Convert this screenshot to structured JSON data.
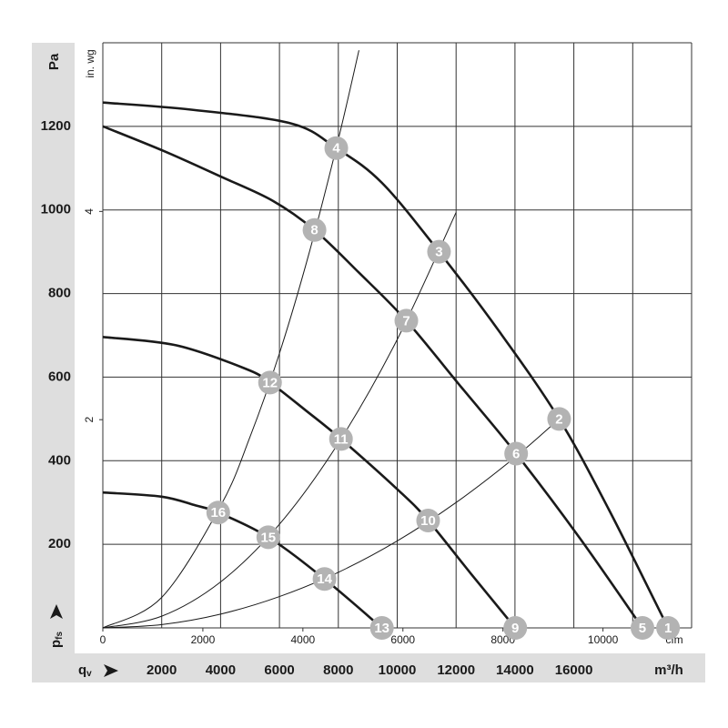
{
  "chart_data": {
    "type": "line",
    "x_label": "m³/h",
    "x2_label": "cfm",
    "y_label": "Pa",
    "y2_label": "in. wg",
    "x_symbol": "q",
    "x_symbol_sub": "v",
    "y_symbol": "p",
    "y_symbol_sub": "fs",
    "xlim": [
      0,
      20000
    ],
    "xticks": [
      2000,
      4000,
      6000,
      8000,
      10000,
      12000,
      14000,
      16000
    ],
    "xgrid": [
      0,
      2000,
      4000,
      6000,
      8000,
      10000,
      12000,
      14000,
      16000,
      18000,
      20000
    ],
    "ylim": [
      0,
      1400
    ],
    "yticks": [
      200,
      400,
      600,
      800,
      1000,
      1200
    ],
    "ygrid": [
      0,
      200,
      400,
      600,
      800,
      1000,
      1200,
      1400
    ],
    "x2lim": [
      0,
      11772
    ],
    "x2ticks": [
      0,
      2000,
      4000,
      6000,
      8000,
      10000
    ],
    "y2lim": [
      0,
      5.62
    ],
    "y2ticks": [
      2,
      4
    ],
    "grid": true,
    "series": [
      {
        "kind": "fan",
        "color": "#1a1a1a",
        "x": [
          0,
          3000,
          6390,
          7930,
          9480,
          11420,
          13490,
          15500,
          17190,
          19200
        ],
        "values": [
          1257,
          1240,
          1207,
          1148,
          1065,
          900,
          707,
          500,
          283,
          0
        ]
      },
      {
        "kind": "fan",
        "color": "#1a1a1a",
        "x": [
          0,
          2070,
          4000,
          5770,
          7190,
          8700,
          10310,
          12200,
          14040,
          16200,
          18330
        ],
        "values": [
          1200,
          1141,
          1080,
          1022,
          952,
          850,
          735,
          574,
          417,
          215,
          0
        ]
      },
      {
        "kind": "fan",
        "color": "#1a1a1a",
        "x": [
          0,
          2500,
          4850,
          5680,
          6900,
          8090,
          10090,
          11050,
          12500,
          14010
        ],
        "values": [
          696,
          676,
          620,
          587,
          520,
          452,
          326,
          257,
          130,
          0
        ]
      },
      {
        "kind": "fan",
        "color": "#1a1a1a",
        "x": [
          0,
          2000,
          3150,
          3920,
          5620,
          7530,
          9480
        ],
        "values": [
          324,
          314,
          293,
          276,
          217,
          117,
          0
        ]
      },
      {
        "kind": "system",
        "color": "#1a1a1a",
        "x": [
          0,
          2000,
          4000,
          5000,
          6000,
          7000,
          8000,
          8700
        ],
        "values": [
          0,
          73,
          292,
          457,
          657,
          895,
          1169,
          1382
        ]
      },
      {
        "kind": "system",
        "color": "#1a1a1a",
        "x": [
          0,
          2000,
          4000,
          6000,
          8000,
          10000,
          12000
        ],
        "values": [
          0,
          28,
          110,
          248,
          442,
          690,
          994
        ]
      },
      {
        "kind": "system",
        "color": "#1a1a1a",
        "x": [
          0,
          2000,
          4000,
          6000,
          8000,
          10000,
          12000,
          14000,
          15500
        ],
        "values": [
          0,
          8,
          33,
          75,
          133,
          208,
          300,
          408,
          500
        ]
      }
    ],
    "points": {
      "color": "#b3b3b3",
      "labels": [
        "1",
        "2",
        "3",
        "4",
        "5",
        "6",
        "7",
        "8",
        "9",
        "10",
        "11",
        "12",
        "13",
        "14",
        "15",
        "16"
      ],
      "x": [
        19200,
        15500,
        11420,
        7930,
        18330,
        14040,
        10310,
        7190,
        14010,
        11050,
        8090,
        5680,
        9480,
        7530,
        5620,
        3920
      ],
      "values": [
        0,
        500,
        900,
        1148,
        0,
        417,
        735,
        952,
        0,
        257,
        452,
        587,
        0,
        117,
        217,
        276
      ]
    }
  }
}
